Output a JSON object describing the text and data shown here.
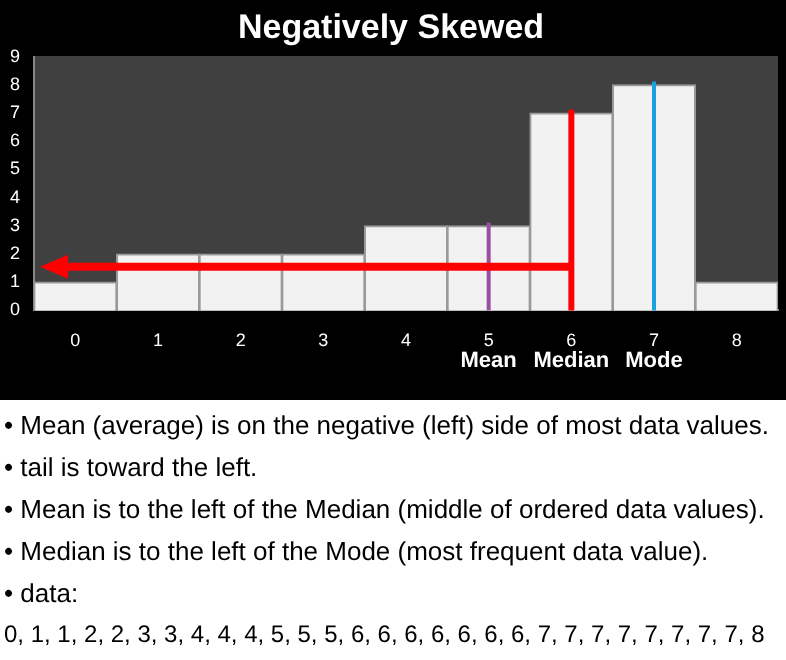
{
  "chart_data": {
    "type": "histogram",
    "title": "Negatively Skewed",
    "bins": [
      -0.5,
      0.5,
      1.5,
      2.5,
      3.5,
      4.5,
      5.5,
      6.5,
      7.5,
      8.5
    ],
    "values": [
      1,
      2,
      2,
      2,
      3,
      3,
      7,
      8,
      1
    ],
    "color": "#f2f2f2",
    "xlim": [
      -0.5,
      8.5
    ],
    "xticks": [
      0,
      1,
      2,
      3,
      4,
      5,
      6,
      7,
      8
    ],
    "ylim": [
      0,
      9
    ],
    "yticks": [
      0,
      1,
      2,
      3,
      4,
      5,
      6,
      7,
      8,
      9
    ],
    "grid": false,
    "legend": false,
    "ref_lines": [
      {
        "axis": "x",
        "value": 5,
        "label": "Mean",
        "color": "#9b4fa0"
      },
      {
        "axis": "x",
        "value": 6,
        "label": "Median",
        "color": "#ff0000"
      },
      {
        "axis": "x",
        "value": 7,
        "label": "Mode",
        "color": "#1ba1e2"
      }
    ],
    "annotations": [
      "• Mean (average) is on the negative (left) side of most data values.",
      "• tail is toward the left.",
      "• Mean is to the left of the Median (middle of ordered data values).",
      "• Median is to the left of the Mode (most frequent data value).",
      "• data:",
      "0, 1, 1, 2, 2, 3, 3, 4, 4, 4, 5, 5, 5, 6, 6, 6, 6, 6, 6, 6, 7, 7, 7, 7, 7, 7, 7, 7, 8"
    ]
  }
}
